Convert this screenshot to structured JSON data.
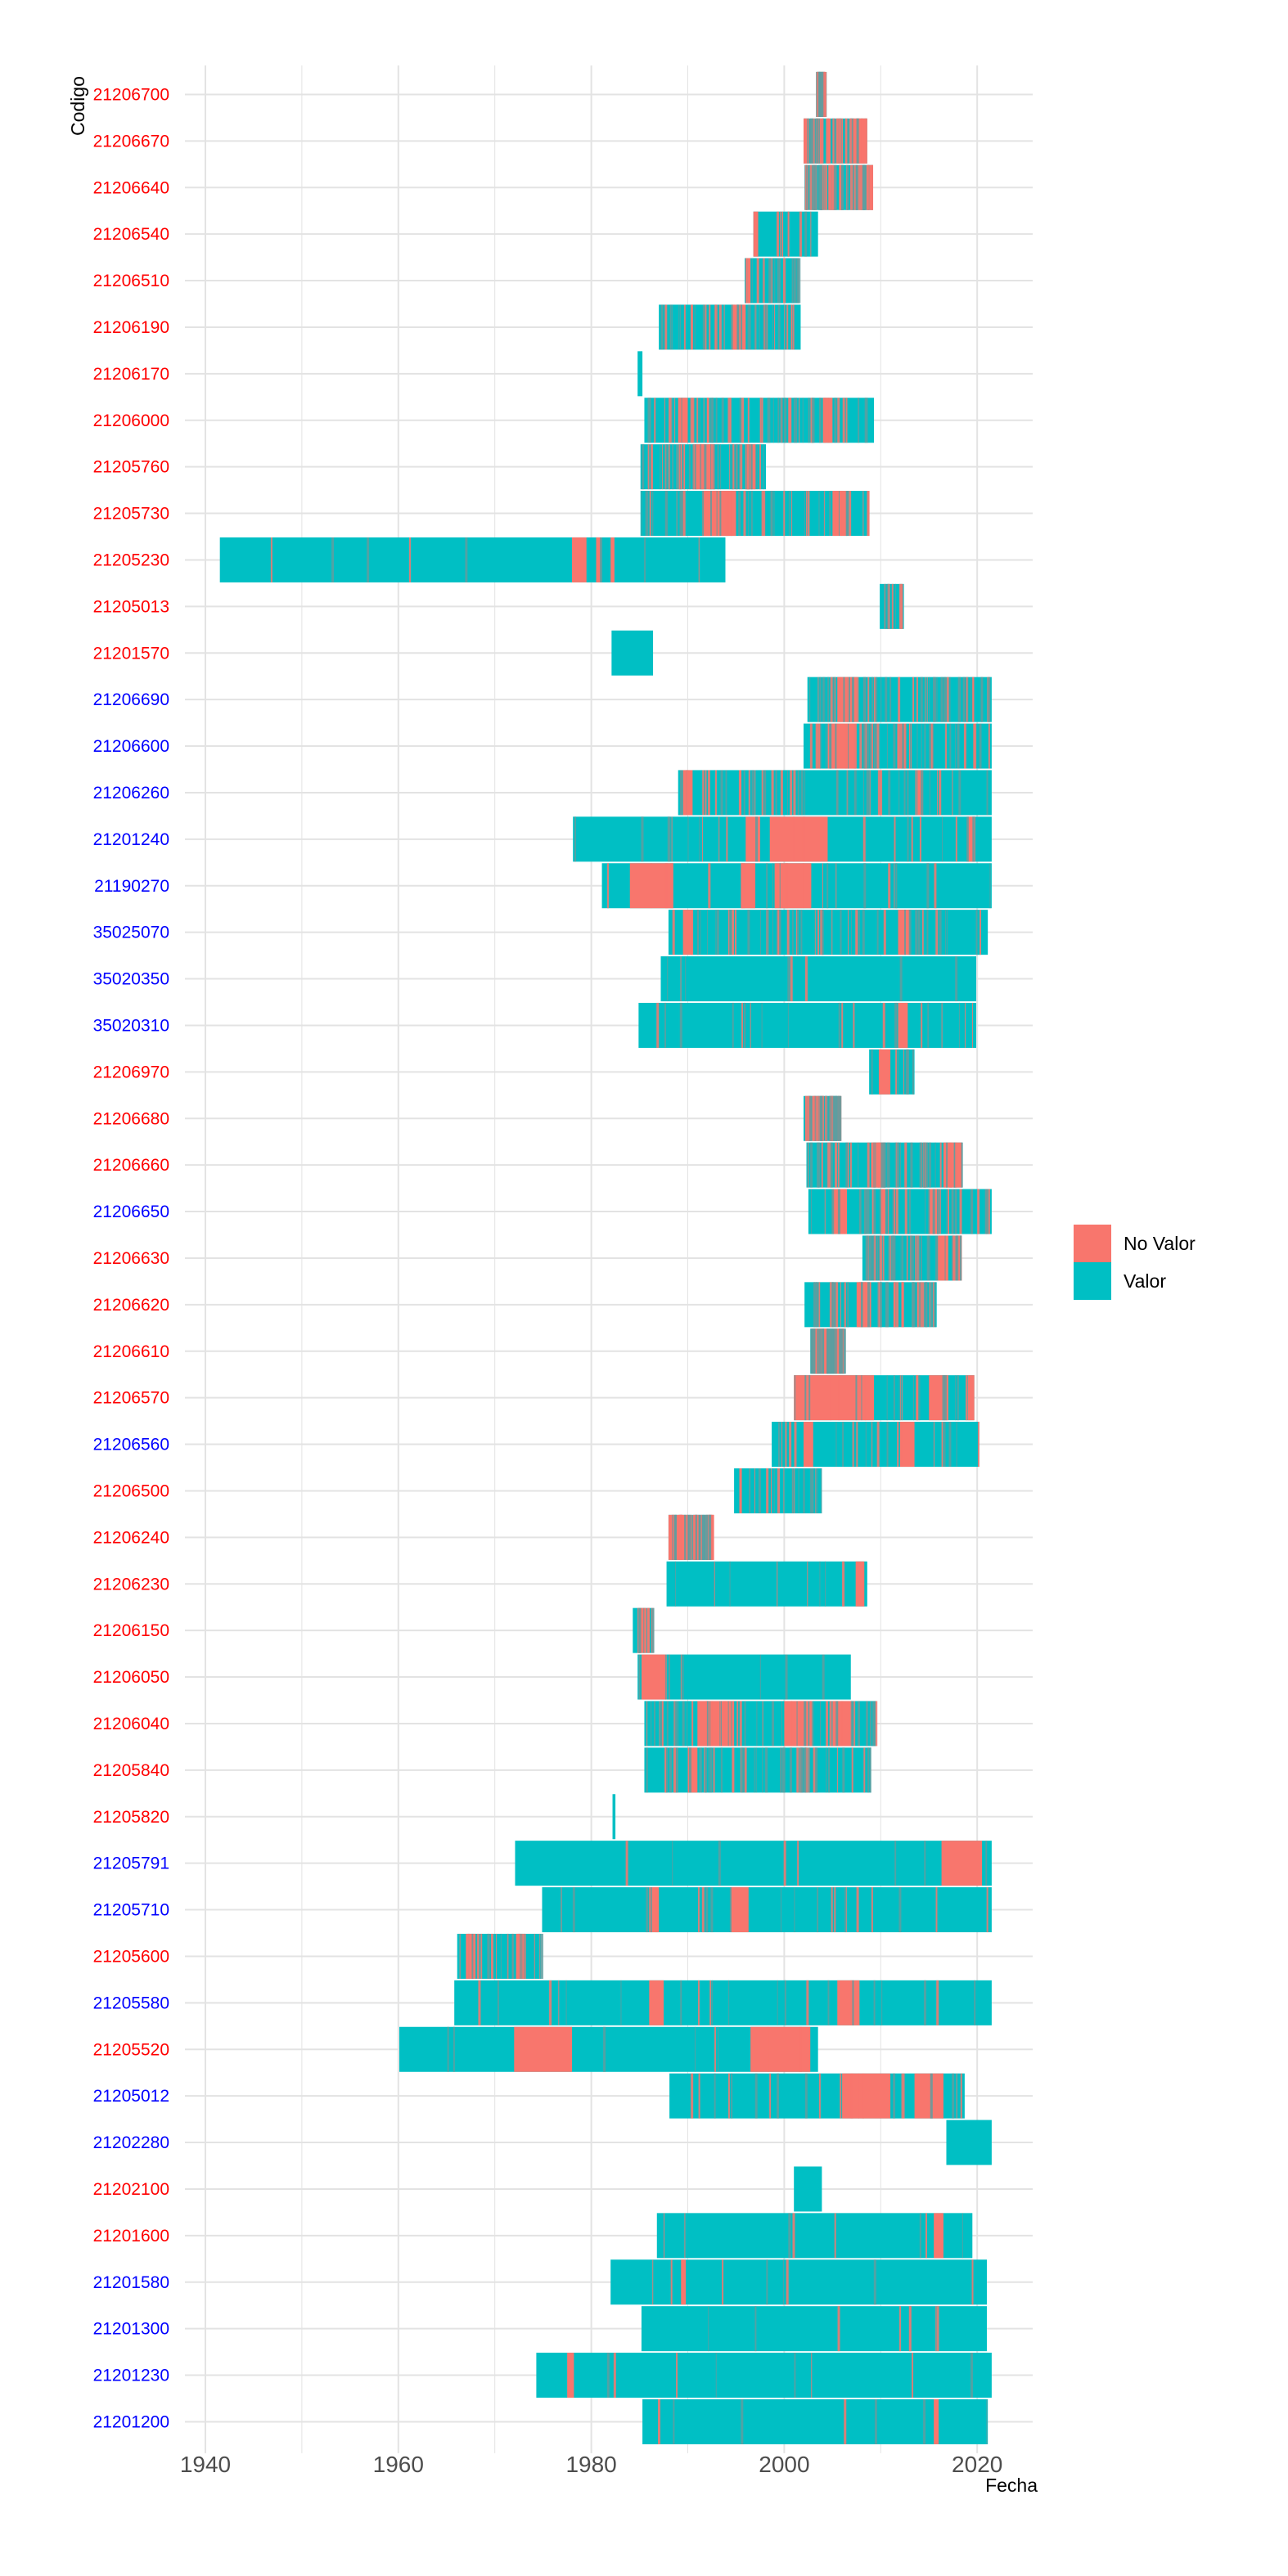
{
  "chart_data": {
    "type": "timeline",
    "xlabel": "Fecha",
    "ylabel": "Codigo",
    "xlim": [
      1937,
      2026
    ],
    "x_ticks": [
      1940,
      1960,
      1980,
      2000,
      2020
    ],
    "grid": true,
    "legend": {
      "position": "right",
      "entries": [
        {
          "label": "No Valor",
          "color": "#F8766D"
        },
        {
          "label": "Valor",
          "color": "#00BFC4"
        }
      ]
    },
    "colors": {
      "no_valor": "#F8766D",
      "valor": "#00BFC4",
      "red_label": "#FF0000",
      "blue_label": "#0000FF"
    },
    "stations": [
      {
        "code": "21206700",
        "label_color": "red",
        "range": [
          2003.3,
          2004.2
        ],
        "gaps": [
          [
            2003.3,
            2003.7
          ]
        ],
        "density": "high"
      },
      {
        "code": "21206670",
        "label_color": "red",
        "range": [
          2002.0,
          2008.6
        ],
        "gaps": [
          [
            2002.0,
            2002.6
          ],
          [
            2007.0,
            2008.6
          ],
          [
            2004.5,
            2004.8
          ]
        ],
        "density": "high"
      },
      {
        "code": "21206640",
        "label_color": "red",
        "range": [
          2002.1,
          2009.2
        ],
        "gaps": [
          [
            2003.0,
            2003.4
          ],
          [
            2008.5,
            2009.2
          ]
        ],
        "density": "high"
      },
      {
        "code": "21206540",
        "label_color": "red",
        "range": [
          1996.8,
          2003.5
        ],
        "gaps": [
          [
            1996.8,
            1997.3
          ]
        ],
        "density": "low"
      },
      {
        "code": "21206510",
        "label_color": "red",
        "range": [
          1995.9,
          2001.5
        ],
        "gaps": [
          [
            1996.2,
            1996.5
          ]
        ],
        "density": "medium"
      },
      {
        "code": "21206190",
        "label_color": "red",
        "range": [
          1987.0,
          2001.7
        ],
        "gaps": [
          [
            1994.5,
            1996.0
          ]
        ],
        "density": "high"
      },
      {
        "code": "21206170",
        "label_color": "red",
        "range": [
          1984.8,
          1985.3
        ],
        "gaps": [],
        "density": "none"
      },
      {
        "code": "21206000",
        "label_color": "red",
        "range": [
          1985.5,
          2009.3
        ],
        "gaps": [
          [
            1989.0,
            1990.0
          ],
          [
            2004.0,
            2005.0
          ]
        ],
        "density": "high"
      },
      {
        "code": "21205760",
        "label_color": "red",
        "range": [
          1985.1,
          1998.1
        ],
        "gaps": [
          [
            1990.5,
            1992.5
          ],
          [
            1996.0,
            1997.0
          ]
        ],
        "density": "high"
      },
      {
        "code": "21205730",
        "label_color": "red",
        "range": [
          1985.1,
          2008.8
        ],
        "gaps": [
          [
            1991.5,
            1995.0
          ],
          [
            2005.0,
            2006.5
          ]
        ],
        "density": "high"
      },
      {
        "code": "21205230",
        "label_color": "red",
        "range": [
          1941.5,
          1993.9
        ],
        "gaps": [
          [
            1978.0,
            1979.5
          ],
          [
            1980.5,
            1981.0
          ],
          [
            1982.0,
            1982.4
          ]
        ],
        "density": "low"
      },
      {
        "code": "21205013",
        "label_color": "red",
        "range": [
          2009.9,
          2012.4
        ],
        "gaps": [],
        "density": "low"
      },
      {
        "code": "21201570",
        "label_color": "red",
        "range": [
          1982.1,
          1986.4
        ],
        "gaps": [],
        "density": "none"
      },
      {
        "code": "21206690",
        "label_color": "blue",
        "range": [
          2002.4,
          2021.5
        ],
        "gaps": [
          [
            2005.5,
            2007.5
          ]
        ],
        "density": "high"
      },
      {
        "code": "21206600",
        "label_color": "blue",
        "range": [
          2002.0,
          2021.5
        ],
        "gaps": [
          [
            2004.5,
            2007.5
          ]
        ],
        "density": "high"
      },
      {
        "code": "21206260",
        "label_color": "blue",
        "range": [
          1989.0,
          2021.5
        ],
        "gaps": [
          [
            1989.5,
            1990.5
          ],
          [
            2013.8,
            2014.4
          ]
        ],
        "density": "high"
      },
      {
        "code": "21201240",
        "label_color": "blue",
        "range": [
          1978.1,
          2021.5
        ],
        "gaps": [
          [
            1996.0,
            1997.5
          ],
          [
            1998.5,
            2004.5
          ],
          [
            2019.0,
            2019.8
          ]
        ],
        "density": "medium"
      },
      {
        "code": "21190270",
        "label_color": "blue",
        "range": [
          1981.1,
          2021.5
        ],
        "gaps": [
          [
            1984.0,
            1988.5
          ],
          [
            1995.5,
            1997.0
          ],
          [
            1999.0,
            2002.8
          ]
        ],
        "density": "medium"
      },
      {
        "code": "35025070",
        "label_color": "blue",
        "range": [
          1988.0,
          2021.1
        ],
        "gaps": [
          [
            1989.5,
            1990.5
          ],
          [
            2011.8,
            2013.0
          ]
        ],
        "density": "high"
      },
      {
        "code": "35020350",
        "label_color": "blue",
        "range": [
          1987.2,
          2019.9
        ],
        "gaps": [],
        "density": "low"
      },
      {
        "code": "35020310",
        "label_color": "blue",
        "range": [
          1984.9,
          2019.9
        ],
        "gaps": [
          [
            2011.8,
            2012.8
          ]
        ],
        "density": "medium"
      },
      {
        "code": "21206970",
        "label_color": "red",
        "range": [
          2008.8,
          2013.5
        ],
        "gaps": [
          [
            2009.8,
            2011.0
          ]
        ],
        "density": "low"
      },
      {
        "code": "21206680",
        "label_color": "red",
        "range": [
          2002.0,
          2005.8
        ],
        "gaps": [],
        "density": "high"
      },
      {
        "code": "21206660",
        "label_color": "red",
        "range": [
          2002.3,
          2018.4
        ],
        "gaps": [
          [
            2009.0,
            2010.5
          ],
          [
            2016.5,
            2018.4
          ]
        ],
        "density": "high"
      },
      {
        "code": "21206650",
        "label_color": "blue",
        "range": [
          2002.5,
          2021.5
        ],
        "gaps": [
          [
            2005.0,
            2006.5
          ],
          [
            2010.0,
            2010.5
          ],
          [
            2015.0,
            2016.0
          ]
        ],
        "density": "high"
      },
      {
        "code": "21206630",
        "label_color": "red",
        "range": [
          2008.1,
          2018.4
        ],
        "gaps": [
          [
            2016.0,
            2017.0
          ],
          [
            2017.8,
            2018.4
          ]
        ],
        "density": "high"
      },
      {
        "code": "21206620",
        "label_color": "red",
        "range": [
          2002.1,
          2015.8
        ],
        "gaps": [
          [
            2007.5,
            2009.0
          ]
        ],
        "density": "high"
      },
      {
        "code": "21206610",
        "label_color": "red",
        "range": [
          2002.7,
          2006.2
        ],
        "gaps": [
          [
            2003.0,
            2004.5
          ]
        ],
        "density": "high"
      },
      {
        "code": "21206570",
        "label_color": "red",
        "range": [
          2001.0,
          2019.7
        ],
        "gaps": [
          [
            2001.0,
            2009.3
          ],
          [
            2015.0,
            2017.0
          ],
          [
            2019.0,
            2019.7
          ]
        ],
        "density": "medium"
      },
      {
        "code": "21206560",
        "label_color": "blue",
        "range": [
          1998.7,
          2020.2
        ],
        "gaps": [
          [
            2002.0,
            2003.0
          ],
          [
            2012.0,
            2013.5
          ]
        ],
        "density": "medium"
      },
      {
        "code": "21206500",
        "label_color": "red",
        "range": [
          1994.8,
          2003.9
        ],
        "gaps": [],
        "density": "medium"
      },
      {
        "code": "21206240",
        "label_color": "red",
        "range": [
          1988.0,
          1992.5
        ],
        "gaps": [
          [
            1988.0,
            1989.8
          ],
          [
            1990.6,
            1991.2
          ]
        ],
        "density": "high"
      },
      {
        "code": "21206230",
        "label_color": "red",
        "range": [
          1987.8,
          2008.6
        ],
        "gaps": [
          [
            2007.4,
            2008.3
          ]
        ],
        "density": "low"
      },
      {
        "code": "21206150",
        "label_color": "red",
        "range": [
          1984.3,
          1986.3
        ],
        "gaps": [
          [
            1984.8,
            1985.7
          ]
        ],
        "density": "low"
      },
      {
        "code": "21206050",
        "label_color": "red",
        "range": [
          1984.8,
          2006.9
        ],
        "gaps": [
          [
            1985.2,
            1987.8
          ]
        ],
        "density": "low"
      },
      {
        "code": "21206040",
        "label_color": "red",
        "range": [
          1985.5,
          2009.5
        ],
        "gaps": [
          [
            1991.0,
            1994.5
          ],
          [
            2000.0,
            2002.5
          ],
          [
            2005.0,
            2007.0
          ]
        ],
        "density": "high"
      },
      {
        "code": "21205840",
        "label_color": "red",
        "range": [
          1985.5,
          2009.0
        ],
        "gaps": [
          [
            1990.0,
            1991.0
          ]
        ],
        "density": "high"
      },
      {
        "code": "21205820",
        "label_color": "red",
        "range": [
          1982.2,
          1982.5
        ],
        "gaps": [],
        "density": "none"
      },
      {
        "code": "21205791",
        "label_color": "blue",
        "range": [
          1972.1,
          2021.5
        ],
        "gaps": [
          [
            2016.3,
            2020.5
          ]
        ],
        "density": "low"
      },
      {
        "code": "21205710",
        "label_color": "blue",
        "range": [
          1974.9,
          2021.5
        ],
        "gaps": [
          [
            1986.0,
            1987.0
          ],
          [
            1994.5,
            1996.3
          ]
        ],
        "density": "medium"
      },
      {
        "code": "21205600",
        "label_color": "red",
        "range": [
          1966.1,
          1974.8
        ],
        "gaps": [
          [
            1967.0,
            1968.0
          ],
          [
            1972.2,
            1973.2
          ]
        ],
        "density": "medium"
      },
      {
        "code": "21205580",
        "label_color": "blue",
        "range": [
          1965.8,
          2021.5
        ],
        "gaps": [
          [
            1986.0,
            1987.5
          ],
          [
            2005.5,
            2007.8
          ]
        ],
        "density": "medium"
      },
      {
        "code": "21205520",
        "label_color": "red",
        "range": [
          1960.1,
          2003.5
        ],
        "gaps": [
          [
            1972.0,
            1978.0
          ],
          [
            1996.5,
            2002.7
          ]
        ],
        "density": "low"
      },
      {
        "code": "21205012",
        "label_color": "blue",
        "range": [
          1988.1,
          2018.7
        ],
        "gaps": [
          [
            2006.0,
            2011.0
          ],
          [
            2013.5,
            2016.5
          ]
        ],
        "density": "medium"
      },
      {
        "code": "21202280",
        "label_color": "blue",
        "range": [
          2016.8,
          2021.5
        ],
        "gaps": [],
        "density": "none"
      },
      {
        "code": "21202100",
        "label_color": "red",
        "range": [
          2001.0,
          2003.9
        ],
        "gaps": [],
        "density": "none"
      },
      {
        "code": "21201600",
        "label_color": "red",
        "range": [
          1986.8,
          2019.5
        ],
        "gaps": [
          [
            2015.5,
            2016.5
          ]
        ],
        "density": "low"
      },
      {
        "code": "21201580",
        "label_color": "blue",
        "range": [
          1982.0,
          2021.0
        ],
        "gaps": [
          [
            1989.3,
            1989.8
          ]
        ],
        "density": "low"
      },
      {
        "code": "21201300",
        "label_color": "blue",
        "range": [
          1985.2,
          2021.0
        ],
        "gaps": [],
        "density": "low"
      },
      {
        "code": "21201230",
        "label_color": "blue",
        "range": [
          1974.3,
          2021.5
        ],
        "gaps": [
          [
            1977.5,
            1978.2
          ]
        ],
        "density": "low"
      },
      {
        "code": "21201200",
        "label_color": "blue",
        "range": [
          1985.3,
          2021.1
        ],
        "gaps": [
          [
            2015.5,
            2016.0
          ]
        ],
        "density": "low"
      }
    ]
  }
}
